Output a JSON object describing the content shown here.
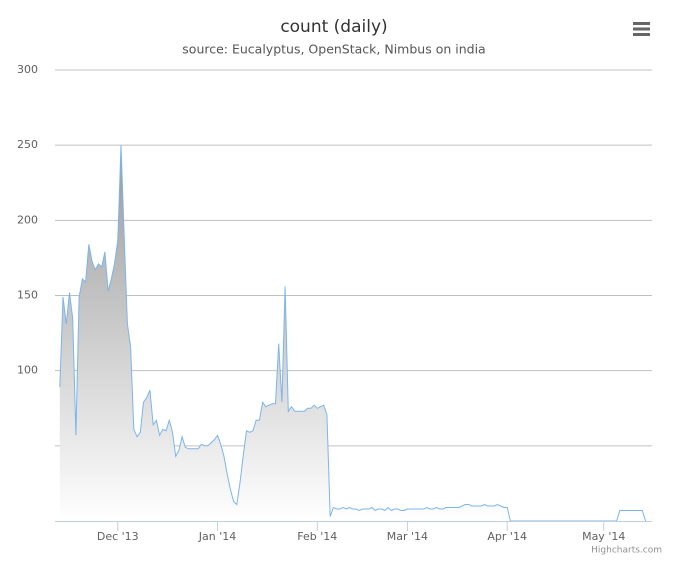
{
  "chart_data": {
    "type": "area",
    "title": "count (daily)",
    "subtitle": "source: Eucalyptus, OpenStack, Nimbus on india",
    "credits": "Highcharts.com",
    "color": "#7cb5ec",
    "fill_top": "#999999",
    "values": [
      89,
      149,
      131,
      152,
      135,
      57,
      149,
      161,
      159,
      184,
      173,
      167,
      171,
      169,
      179,
      153,
      161,
      171,
      187,
      250,
      189,
      131,
      116,
      61,
      56,
      59,
      79,
      82,
      87,
      64,
      67,
      57,
      61,
      60,
      67,
      59,
      43,
      47,
      56,
      49,
      48,
      48,
      48,
      48,
      51,
      50,
      50,
      52,
      54,
      57,
      51,
      43,
      31,
      21,
      13,
      11,
      26,
      44,
      60,
      59,
      60,
      67,
      67,
      79,
      76,
      77,
      78,
      78,
      118,
      79,
      156,
      73,
      76,
      73,
      73,
      73,
      73,
      75,
      75,
      77,
      75,
      76,
      77,
      71,
      3,
      9,
      8,
      8,
      9,
      8,
      9,
      8,
      8,
      7,
      8,
      8,
      8,
      9,
      7,
      8,
      8,
      7,
      9,
      7,
      8,
      8,
      7,
      7,
      8,
      8,
      8,
      8,
      8,
      8,
      9,
      8,
      8,
      9,
      8,
      8,
      9,
      9,
      9,
      9,
      9,
      10,
      11,
      11,
      10,
      10,
      10,
      10,
      11,
      10,
      10,
      10,
      11,
      10,
      9,
      9,
      0,
      0,
      0,
      0,
      0,
      0,
      0,
      0,
      0,
      0,
      0,
      0,
      0,
      0,
      0,
      0,
      0,
      0,
      0,
      0,
      0,
      0,
      0,
      0,
      0,
      0,
      0,
      0,
      0,
      0,
      0,
      0,
      0,
      0,
      7,
      7,
      7,
      7,
      7,
      7,
      7,
      7,
      0
    ],
    "xlim": [
      -1.5,
      184
    ],
    "xticks": [
      {
        "value": 18,
        "label": "Dec '13"
      },
      {
        "value": 49,
        "label": "Jan '14"
      },
      {
        "value": 80,
        "label": "Feb '14"
      },
      {
        "value": 108,
        "label": "Mar '14"
      },
      {
        "value": 139,
        "label": "Apr '14"
      },
      {
        "value": 169,
        "label": "May '14"
      }
    ],
    "ylim": [
      0,
      300
    ],
    "yticks": [
      100,
      150,
      200,
      250,
      300
    ],
    "unlabeled_gridlines": [
      50
    ],
    "grid": true
  }
}
